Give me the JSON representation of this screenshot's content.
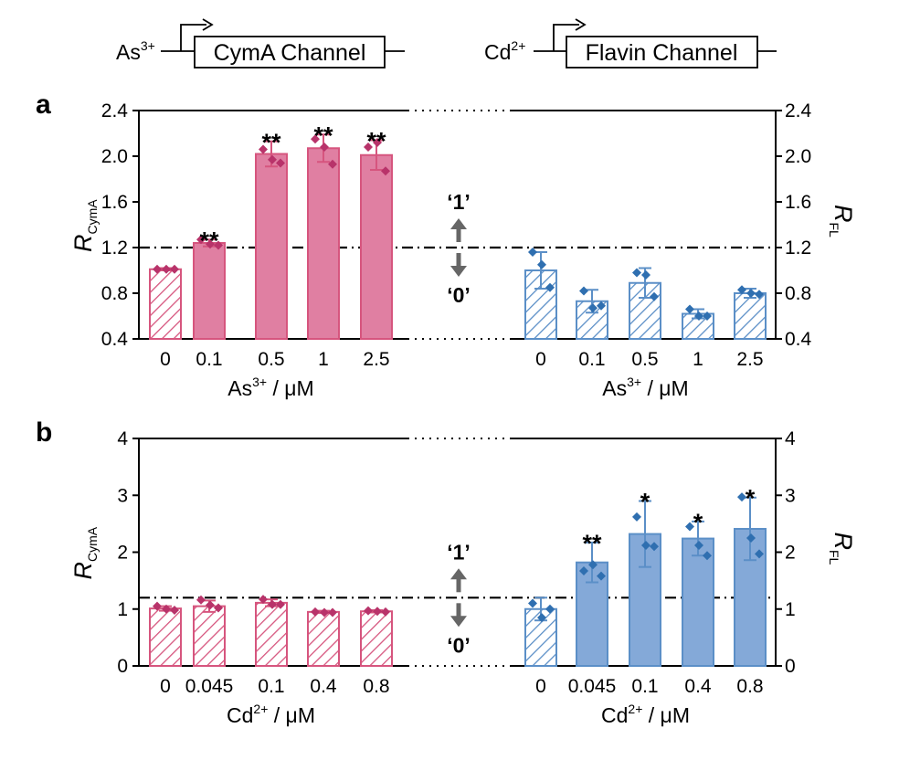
{
  "header": {
    "left_ion": "As",
    "left_ion_charge": "3+",
    "left_channel": "CymA Channel",
    "right_ion": "Cd",
    "right_ion_charge": "2+",
    "right_channel": "Flavin Channel"
  },
  "states": {
    "one": "‘1’",
    "zero": "‘0’"
  },
  "colors": {
    "cyma": "#d6557e",
    "cyma_fill": "#e07fa2",
    "flavin": "#5b8fc7",
    "flavin_fill": "#84a9d8",
    "arrow": "#666666"
  },
  "chart_data": [
    {
      "panel": "a",
      "type": "bar",
      "threshold": 1.2,
      "left_axis": {
        "label": "R",
        "label_sub": "CymA",
        "ylim": [
          0.4,
          2.4
        ],
        "ticks": [
          "0.4",
          "0.8",
          "1.2",
          "1.6",
          "2.0",
          "2.4"
        ]
      },
      "right_axis": {
        "label": "R",
        "label_sub": "FL",
        "ylim": [
          0.4,
          2.4
        ],
        "ticks": [
          "0.4",
          "0.8",
          "1.2",
          "1.6",
          "2.0",
          "2.4"
        ]
      },
      "left_group": {
        "channel": "CymA",
        "xlabel": "As",
        "xlabel_sup": "3+",
        "xlabel_unit": " / μM",
        "categories": [
          "0",
          "0.1",
          "0.5",
          "1",
          "2.5"
        ],
        "values": [
          1.01,
          1.24,
          2.02,
          2.07,
          2.01
        ],
        "errors": [
          0.01,
          0.03,
          0.11,
          0.12,
          0.13
        ],
        "points": [
          [
            1.01,
            1.01,
            1.01
          ],
          [
            1.27,
            1.23,
            1.22
          ],
          [
            2.06,
            1.97,
            1.94
          ],
          [
            2.15,
            2.08,
            1.93
          ],
          [
            2.08,
            2.12,
            1.87
          ]
        ],
        "significance": [
          "",
          "**",
          "**",
          "**",
          "**"
        ],
        "pattern": [
          "hatch",
          "solid",
          "solid",
          "solid",
          "solid"
        ]
      },
      "right_group": {
        "channel": "Flavin",
        "xlabel": "As",
        "xlabel_sup": "3+",
        "xlabel_unit": " / μM",
        "categories": [
          "0",
          "0.1",
          "0.5",
          "1",
          "2.5"
        ],
        "values": [
          1.0,
          0.73,
          0.89,
          0.62,
          0.8
        ],
        "errors": [
          0.16,
          0.1,
          0.13,
          0.04,
          0.04
        ],
        "points": [
          [
            1.16,
            1.05,
            0.85
          ],
          [
            0.82,
            0.67,
            0.69
          ],
          [
            0.98,
            0.96,
            0.77
          ],
          [
            0.66,
            0.6,
            0.6
          ],
          [
            0.83,
            0.8,
            0.79
          ]
        ],
        "significance": [
          "",
          "",
          "",
          "",
          ""
        ],
        "pattern": [
          "hatch",
          "hatch",
          "hatch",
          "hatch",
          "hatch"
        ]
      }
    },
    {
      "panel": "b",
      "type": "bar",
      "threshold": 1.2,
      "left_axis": {
        "label": "R",
        "label_sub": "CymA",
        "ylim": [
          0,
          4
        ],
        "ticks": [
          "0",
          "1",
          "2",
          "3",
          "4"
        ]
      },
      "right_axis": {
        "label": "R",
        "label_sub": "FL",
        "ylim": [
          0,
          4
        ],
        "ticks": [
          "0",
          "1",
          "2",
          "3",
          "4"
        ]
      },
      "left_group": {
        "channel": "CymA",
        "xlabel": "Cd",
        "xlabel_sup": "2+",
        "xlabel_unit": " / μM",
        "categories": [
          "0",
          "0.045",
          "0.1",
          "0.4",
          "0.8"
        ],
        "values": [
          1.01,
          1.05,
          1.11,
          0.95,
          0.96
        ],
        "errors": [
          0.04,
          0.1,
          0.06,
          0.02,
          0.02
        ],
        "points": [
          [
            1.05,
            1.0,
            0.98
          ],
          [
            1.16,
            1.07,
            1.02
          ],
          [
            1.17,
            1.08,
            1.08
          ],
          [
            0.95,
            0.94,
            0.94
          ],
          [
            0.97,
            0.96,
            0.95
          ]
        ],
        "significance": [
          "",
          "",
          "",
          "",
          ""
        ],
        "pattern": [
          "hatch",
          "hatch",
          "hatch",
          "hatch",
          "hatch"
        ]
      },
      "right_group": {
        "channel": "Flavin",
        "xlabel": "Cd",
        "xlabel_sup": "2+",
        "xlabel_unit": " / μM",
        "categories": [
          "0",
          "0.045",
          "0.1",
          "0.4",
          "0.8"
        ],
        "values": [
          1.0,
          1.82,
          2.32,
          2.24,
          2.41
        ],
        "errors": [
          0.2,
          0.35,
          0.58,
          0.3,
          0.55
        ],
        "points": [
          [
            1.1,
            0.85,
            1.0
          ],
          [
            1.67,
            1.78,
            1.58
          ],
          [
            2.62,
            2.12,
            2.1
          ],
          [
            2.45,
            2.12,
            1.94
          ],
          [
            2.97,
            2.25,
            1.97
          ]
        ],
        "significance": [
          "",
          "**",
          "*",
          "*",
          "*"
        ],
        "pattern": [
          "hatch",
          "solid",
          "solid",
          "solid",
          "solid"
        ]
      }
    }
  ]
}
